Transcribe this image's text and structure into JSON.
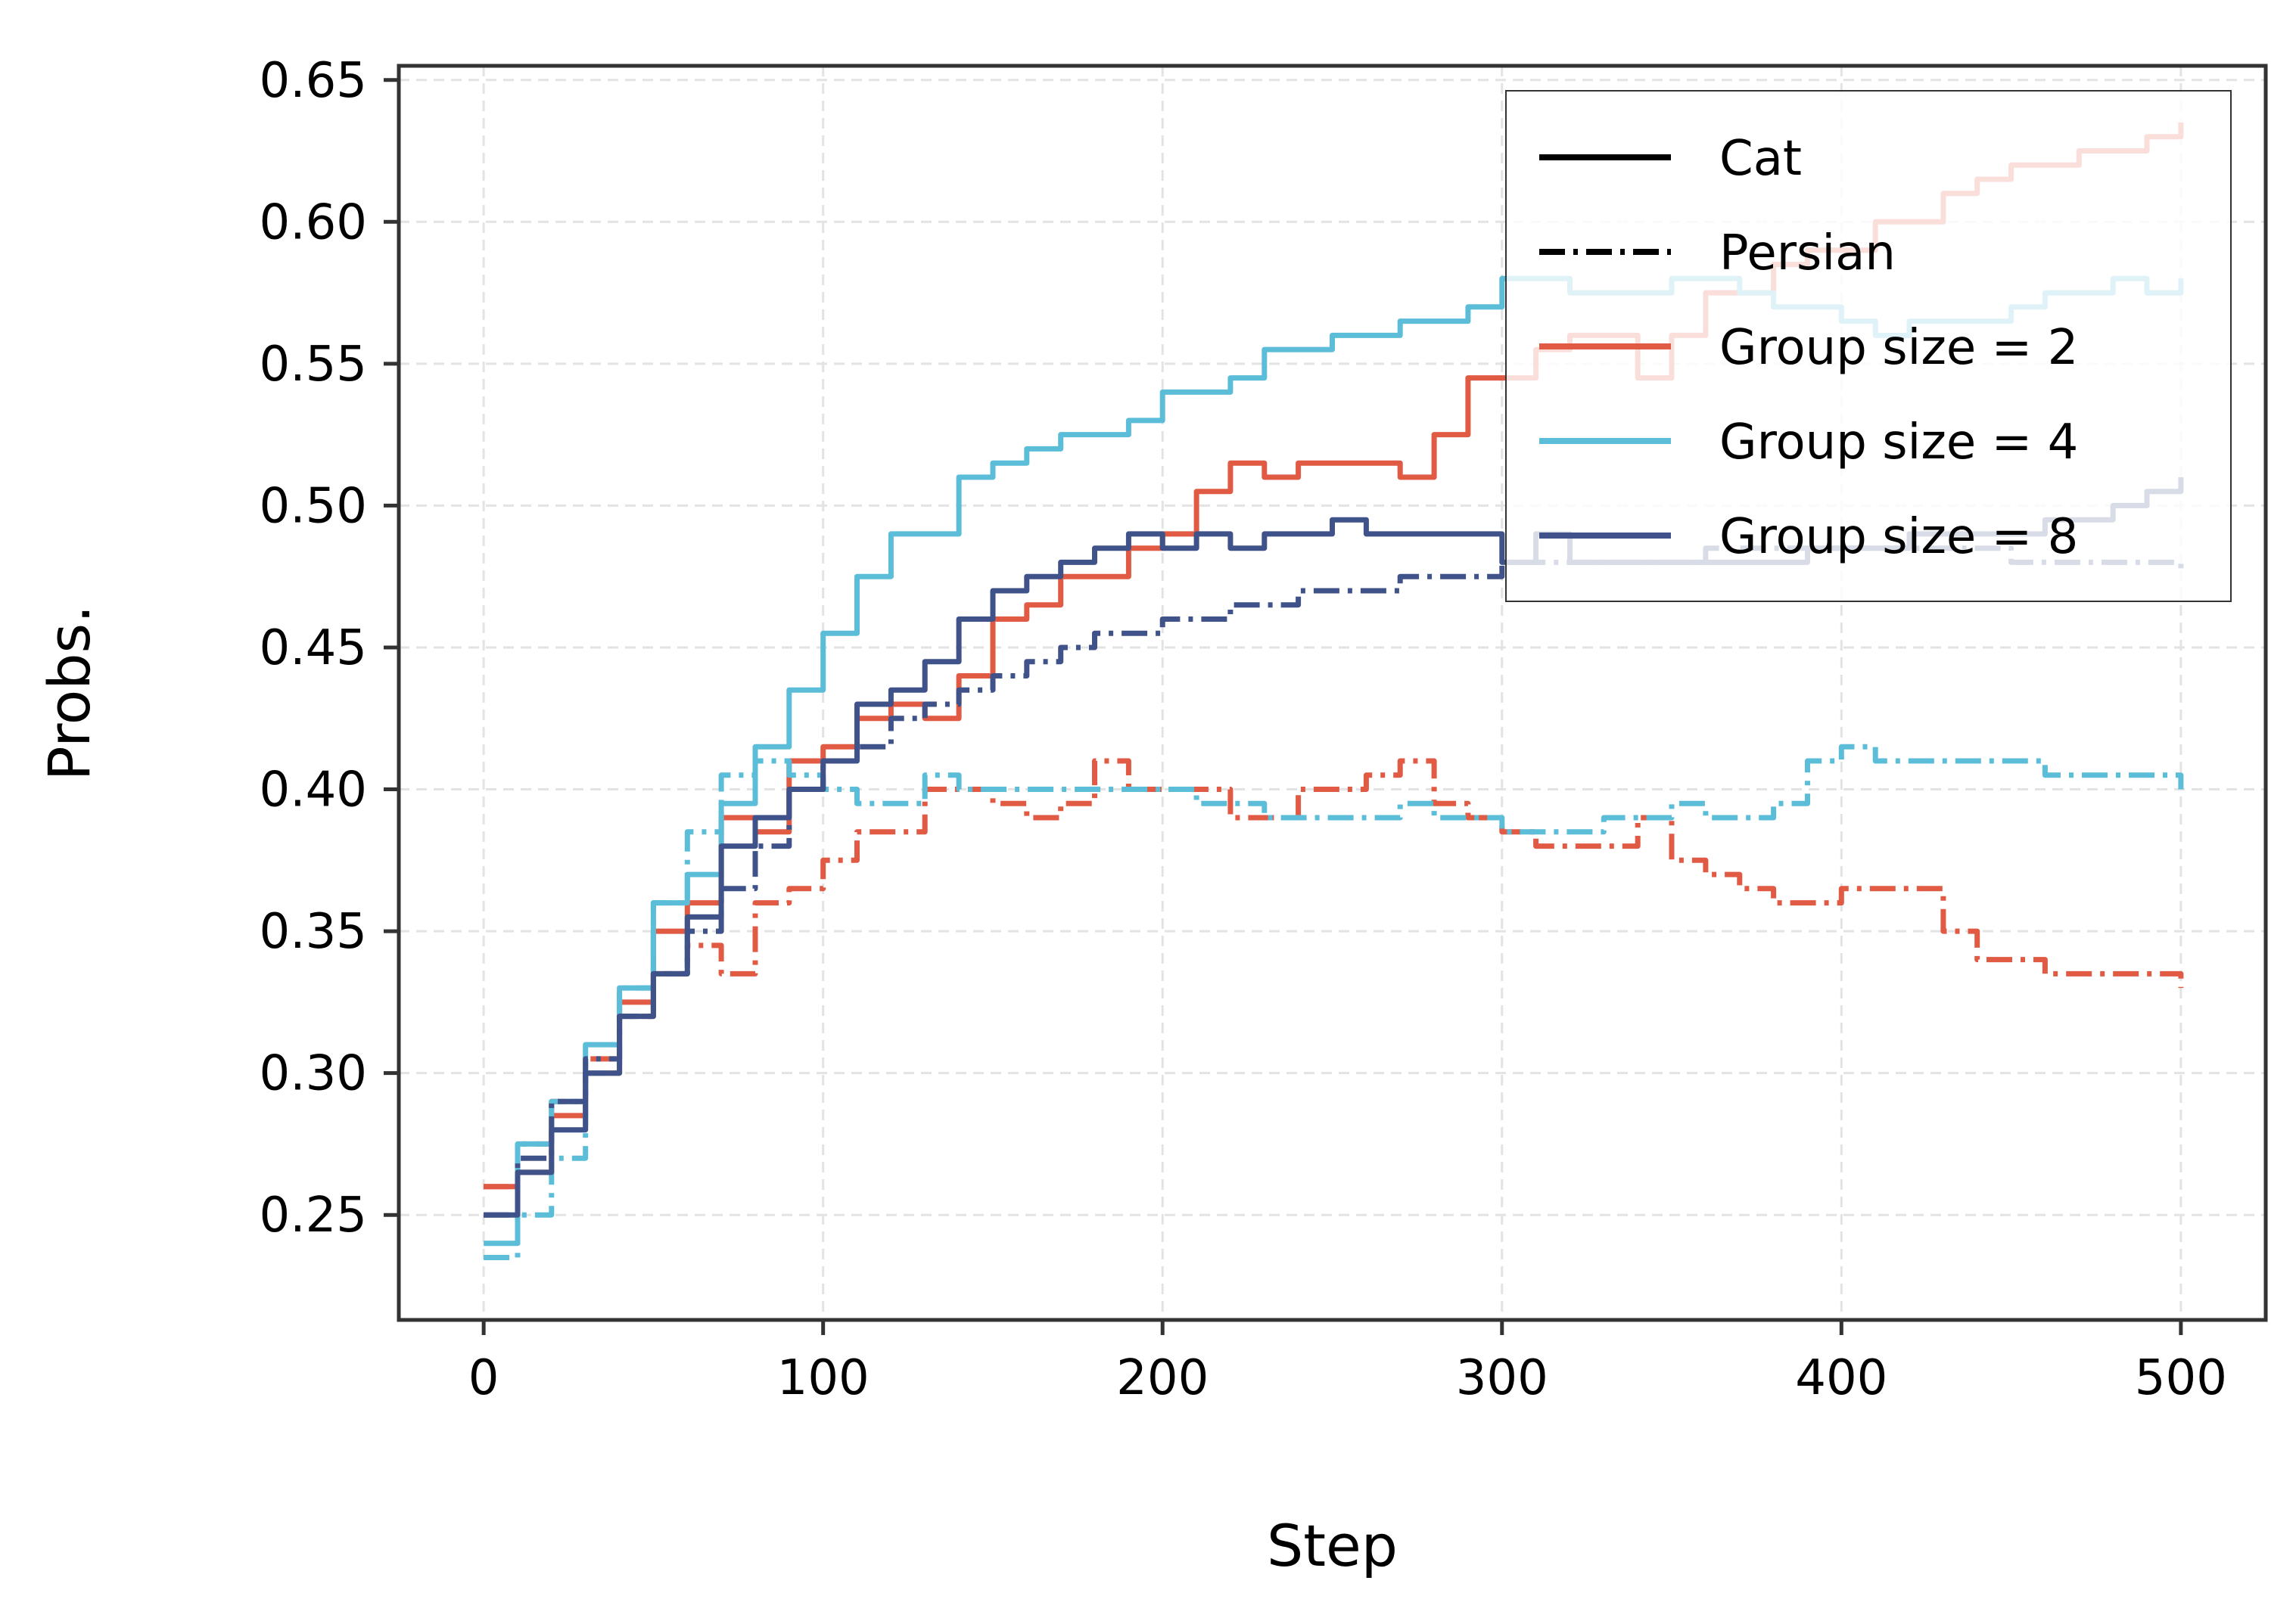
{
  "chart_data": {
    "type": "line",
    "title": "",
    "xlabel": "Step",
    "ylabel": "Probs.",
    "xlim": [
      -25,
      525
    ],
    "ylim": [
      0.213,
      0.655
    ],
    "xticks": [
      0,
      100,
      200,
      300,
      400,
      500
    ],
    "yticks": [
      0.25,
      0.3,
      0.35,
      0.4,
      0.45,
      0.5,
      0.55,
      0.6,
      0.65
    ],
    "xtick_labels": [
      "0",
      "100",
      "200",
      "300",
      "400",
      "500"
    ],
    "ytick_labels": [
      "0.25",
      "0.30",
      "0.35",
      "0.40",
      "0.45",
      "0.50",
      "0.55",
      "0.60",
      "0.65"
    ],
    "grid": true,
    "legend": {
      "placement": "top-right",
      "style_entries": [
        {
          "label": "Cat",
          "dash": "solid"
        },
        {
          "label": "Persian",
          "dash": "dashdot"
        }
      ],
      "color_entries": [
        {
          "label": "Group size = 2",
          "color": "#E05A44"
        },
        {
          "label": "Group size = 4",
          "color": "#5BBDD8"
        },
        {
          "label": "Group size = 8",
          "color": "#3F5289"
        }
      ]
    },
    "series": [
      {
        "name": "Cat, Group size = 2",
        "color": "#E05A44",
        "dash": "solid",
        "x": [
          0,
          10,
          20,
          30,
          40,
          50,
          60,
          70,
          80,
          90,
          100,
          110,
          120,
          130,
          140,
          150,
          160,
          170,
          180,
          190,
          200,
          210,
          220,
          230,
          240,
          250,
          260,
          270,
          280,
          290,
          300,
          310,
          320,
          330,
          340,
          350,
          360,
          370,
          380,
          390,
          400,
          410,
          420,
          430,
          440,
          450,
          460,
          470,
          480,
          490,
          500
        ],
        "y": [
          0.26,
          0.265,
          0.285,
          0.3,
          0.325,
          0.35,
          0.36,
          0.39,
          0.385,
          0.41,
          0.415,
          0.425,
          0.43,
          0.425,
          0.44,
          0.46,
          0.465,
          0.475,
          0.475,
          0.485,
          0.49,
          0.505,
          0.515,
          0.51,
          0.515,
          0.515,
          0.515,
          0.51,
          0.525,
          0.545,
          0.545,
          0.555,
          0.56,
          0.56,
          0.545,
          0.56,
          0.575,
          0.575,
          0.585,
          0.59,
          0.59,
          0.6,
          0.6,
          0.61,
          0.615,
          0.62,
          0.62,
          0.625,
          0.625,
          0.63,
          0.635
        ]
      },
      {
        "name": "Persian, Group size = 2",
        "color": "#E05A44",
        "dash": "dashdot",
        "x": [
          0,
          10,
          20,
          30,
          40,
          50,
          60,
          70,
          80,
          90,
          100,
          110,
          120,
          130,
          140,
          150,
          160,
          170,
          180,
          190,
          200,
          210,
          220,
          230,
          240,
          250,
          260,
          270,
          280,
          290,
          300,
          310,
          320,
          330,
          340,
          350,
          360,
          370,
          380,
          390,
          400,
          410,
          420,
          430,
          440,
          450,
          460,
          470,
          480,
          490,
          500
        ],
        "y": [
          0.26,
          0.275,
          0.29,
          0.305,
          0.32,
          0.335,
          0.345,
          0.335,
          0.36,
          0.365,
          0.375,
          0.385,
          0.385,
          0.4,
          0.4,
          0.395,
          0.39,
          0.395,
          0.41,
          0.4,
          0.4,
          0.4,
          0.39,
          0.39,
          0.4,
          0.4,
          0.405,
          0.41,
          0.395,
          0.39,
          0.385,
          0.38,
          0.38,
          0.38,
          0.39,
          0.375,
          0.37,
          0.365,
          0.36,
          0.36,
          0.365,
          0.365,
          0.365,
          0.35,
          0.34,
          0.34,
          0.335,
          0.335,
          0.335,
          0.335,
          0.33
        ]
      },
      {
        "name": "Cat, Group size = 4",
        "color": "#5BBDD8",
        "dash": "solid",
        "x": [
          0,
          10,
          20,
          30,
          40,
          50,
          60,
          70,
          80,
          90,
          100,
          110,
          120,
          130,
          140,
          150,
          160,
          170,
          180,
          190,
          200,
          210,
          220,
          230,
          240,
          250,
          260,
          270,
          280,
          290,
          300,
          310,
          320,
          330,
          340,
          350,
          360,
          370,
          380,
          390,
          400,
          410,
          420,
          430,
          440,
          450,
          460,
          470,
          480,
          490,
          500
        ],
        "y": [
          0.24,
          0.275,
          0.29,
          0.31,
          0.33,
          0.36,
          0.37,
          0.395,
          0.415,
          0.435,
          0.455,
          0.475,
          0.49,
          0.49,
          0.51,
          0.515,
          0.52,
          0.525,
          0.525,
          0.53,
          0.54,
          0.54,
          0.545,
          0.555,
          0.555,
          0.56,
          0.56,
          0.565,
          0.565,
          0.57,
          0.58,
          0.58,
          0.575,
          0.575,
          0.575,
          0.58,
          0.58,
          0.575,
          0.57,
          0.57,
          0.565,
          0.56,
          0.565,
          0.565,
          0.565,
          0.57,
          0.575,
          0.575,
          0.58,
          0.575,
          0.58
        ]
      },
      {
        "name": "Persian, Group size = 4",
        "color": "#5BBDD8",
        "dash": "dashdot",
        "x": [
          0,
          10,
          20,
          30,
          40,
          50,
          60,
          70,
          80,
          90,
          100,
          110,
          120,
          130,
          140,
          150,
          160,
          170,
          180,
          190,
          200,
          210,
          220,
          230,
          240,
          250,
          260,
          270,
          280,
          290,
          300,
          310,
          320,
          330,
          340,
          350,
          360,
          370,
          380,
          390,
          400,
          410,
          420,
          430,
          440,
          450,
          460,
          470,
          480,
          490,
          500
        ],
        "y": [
          0.235,
          0.25,
          0.27,
          0.3,
          0.33,
          0.36,
          0.385,
          0.405,
          0.41,
          0.405,
          0.4,
          0.395,
          0.395,
          0.405,
          0.4,
          0.4,
          0.4,
          0.4,
          0.4,
          0.4,
          0.4,
          0.395,
          0.395,
          0.39,
          0.39,
          0.39,
          0.39,
          0.395,
          0.39,
          0.39,
          0.385,
          0.385,
          0.385,
          0.39,
          0.39,
          0.395,
          0.39,
          0.39,
          0.395,
          0.41,
          0.415,
          0.41,
          0.41,
          0.41,
          0.41,
          0.41,
          0.405,
          0.405,
          0.405,
          0.405,
          0.4
        ]
      },
      {
        "name": "Cat, Group size = 8",
        "color": "#3F5289",
        "dash": "solid",
        "x": [
          0,
          10,
          20,
          30,
          40,
          50,
          60,
          70,
          80,
          90,
          100,
          110,
          120,
          130,
          140,
          150,
          160,
          170,
          180,
          190,
          200,
          210,
          220,
          230,
          240,
          250,
          260,
          270,
          280,
          290,
          300,
          310,
          320,
          330,
          340,
          350,
          360,
          370,
          380,
          390,
          400,
          410,
          420,
          430,
          440,
          450,
          460,
          470,
          480,
          490,
          500
        ],
        "y": [
          0.25,
          0.265,
          0.28,
          0.3,
          0.32,
          0.335,
          0.355,
          0.38,
          0.39,
          0.4,
          0.41,
          0.43,
          0.435,
          0.445,
          0.46,
          0.47,
          0.475,
          0.48,
          0.485,
          0.49,
          0.485,
          0.49,
          0.485,
          0.49,
          0.49,
          0.495,
          0.49,
          0.49,
          0.49,
          0.49,
          0.48,
          0.49,
          0.48,
          0.48,
          0.48,
          0.48,
          0.48,
          0.48,
          0.48,
          0.485,
          0.485,
          0.485,
          0.49,
          0.49,
          0.49,
          0.49,
          0.495,
          0.495,
          0.5,
          0.505,
          0.51
        ]
      },
      {
        "name": "Persian, Group size = 8",
        "color": "#3F5289",
        "dash": "dashdot",
        "x": [
          0,
          10,
          20,
          30,
          40,
          50,
          60,
          70,
          80,
          90,
          100,
          110,
          120,
          130,
          140,
          150,
          160,
          170,
          180,
          190,
          200,
          210,
          220,
          230,
          240,
          250,
          260,
          270,
          280,
          290,
          300,
          310,
          320,
          330,
          340,
          350,
          360,
          370,
          380,
          390,
          400,
          410,
          420,
          430,
          440,
          450,
          460,
          470,
          480,
          490,
          500
        ],
        "y": [
          0.25,
          0.27,
          0.29,
          0.305,
          0.32,
          0.335,
          0.35,
          0.365,
          0.38,
          0.4,
          0.41,
          0.415,
          0.425,
          0.43,
          0.435,
          0.44,
          0.445,
          0.45,
          0.455,
          0.455,
          0.46,
          0.46,
          0.465,
          0.465,
          0.47,
          0.47,
          0.47,
          0.475,
          0.475,
          0.475,
          0.48,
          0.48,
          0.48,
          0.48,
          0.48,
          0.48,
          0.485,
          0.485,
          0.485,
          0.485,
          0.485,
          0.485,
          0.485,
          0.485,
          0.485,
          0.48,
          0.48,
          0.48,
          0.48,
          0.48,
          0.475
        ]
      }
    ]
  }
}
